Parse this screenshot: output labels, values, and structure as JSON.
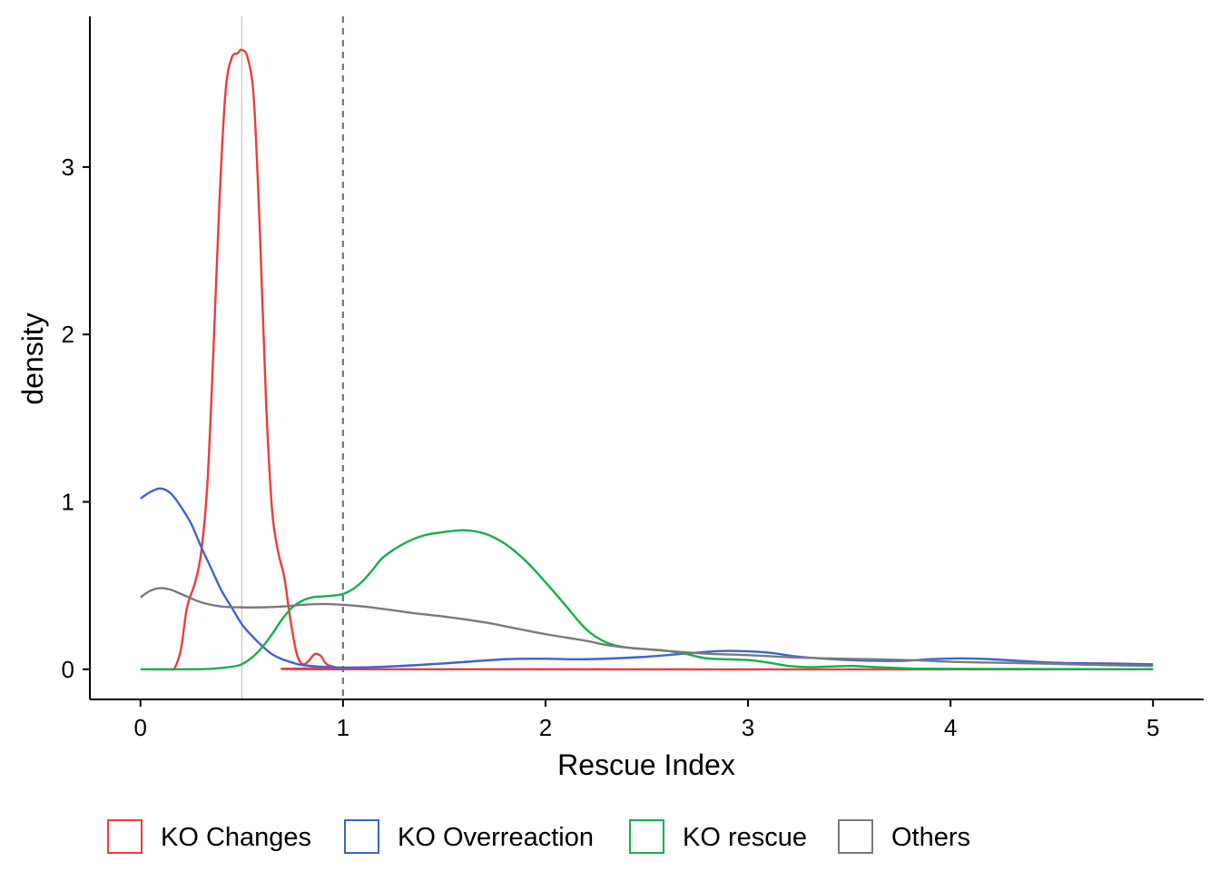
{
  "chart_data": {
    "type": "line",
    "title": "",
    "xlabel": "Rescue Index",
    "ylabel": "density",
    "xlim": [
      -0.25,
      5.25
    ],
    "ylim": [
      -0.18,
      3.9
    ],
    "x_ticks": [
      0,
      1,
      2,
      3,
      4,
      5
    ],
    "x_tick_labels": [
      "0",
      "1",
      "2",
      "3",
      "4",
      "5"
    ],
    "y_ticks": [
      0,
      1,
      2,
      3
    ],
    "y_tick_labels": [
      "0",
      "1",
      "2",
      "3"
    ],
    "grid": false,
    "legend_position": "bottom",
    "reference_lines": [
      {
        "x": 0.5,
        "style": "solid",
        "color": "#bbbbbb"
      },
      {
        "x": 1.0,
        "style": "dashed",
        "color": "#777777"
      }
    ],
    "series": [
      {
        "name": "KO Changes",
        "color": "#f03a3a",
        "points": [
          [
            0.15,
            0
          ],
          [
            0.17,
            0.01
          ],
          [
            0.2,
            0.12
          ],
          [
            0.23,
            0.37
          ],
          [
            0.27,
            0.52
          ],
          [
            0.3,
            0.7
          ],
          [
            0.33,
            1.1
          ],
          [
            0.36,
            1.9
          ],
          [
            0.39,
            2.8
          ],
          [
            0.42,
            3.45
          ],
          [
            0.45,
            3.65
          ],
          [
            0.48,
            3.68
          ],
          [
            0.5,
            3.7
          ],
          [
            0.53,
            3.65
          ],
          [
            0.56,
            3.4
          ],
          [
            0.59,
            2.6
          ],
          [
            0.62,
            1.6
          ],
          [
            0.65,
            0.95
          ],
          [
            0.68,
            0.7
          ],
          [
            0.71,
            0.55
          ],
          [
            0.74,
            0.3
          ],
          [
            0.77,
            0.1
          ],
          [
            0.8,
            0.03
          ],
          [
            0.83,
            0.05
          ],
          [
            0.86,
            0.09
          ],
          [
            0.89,
            0.08
          ],
          [
            0.92,
            0.03
          ],
          [
            0.97,
            0.01
          ],
          [
            1.0,
            0
          ],
          [
            5.0,
            0
          ]
        ]
      },
      {
        "name": "KO Overreaction",
        "color": "#3b63d8",
        "points": [
          [
            0,
            1.02
          ],
          [
            0.05,
            1.06
          ],
          [
            0.1,
            1.08
          ],
          [
            0.15,
            1.05
          ],
          [
            0.2,
            0.97
          ],
          [
            0.25,
            0.87
          ],
          [
            0.3,
            0.73
          ],
          [
            0.35,
            0.6
          ],
          [
            0.4,
            0.47
          ],
          [
            0.45,
            0.37
          ],
          [
            0.5,
            0.27
          ],
          [
            0.55,
            0.2
          ],
          [
            0.6,
            0.14
          ],
          [
            0.65,
            0.09
          ],
          [
            0.7,
            0.06
          ],
          [
            0.75,
            0.04
          ],
          [
            0.8,
            0.025
          ],
          [
            0.9,
            0.015
          ],
          [
            1.0,
            0.01
          ],
          [
            1.2,
            0.015
          ],
          [
            1.5,
            0.035
          ],
          [
            1.8,
            0.06
          ],
          [
            2.0,
            0.063
          ],
          [
            2.2,
            0.06
          ],
          [
            2.5,
            0.075
          ],
          [
            2.75,
            0.1
          ],
          [
            2.9,
            0.11
          ],
          [
            3.1,
            0.1
          ],
          [
            3.25,
            0.075
          ],
          [
            3.5,
            0.055
          ],
          [
            3.75,
            0.05
          ],
          [
            3.9,
            0.06
          ],
          [
            4.05,
            0.065
          ],
          [
            4.2,
            0.06
          ],
          [
            4.5,
            0.04
          ],
          [
            4.75,
            0.035
          ],
          [
            5.0,
            0.03
          ]
        ]
      },
      {
        "name": "KO rescue",
        "color": "#16b04a",
        "points": [
          [
            0,
            0
          ],
          [
            0.2,
            0
          ],
          [
            0.35,
            0.003
          ],
          [
            0.45,
            0.015
          ],
          [
            0.5,
            0.03
          ],
          [
            0.55,
            0.07
          ],
          [
            0.6,
            0.13
          ],
          [
            0.65,
            0.21
          ],
          [
            0.7,
            0.3
          ],
          [
            0.75,
            0.37
          ],
          [
            0.8,
            0.41
          ],
          [
            0.85,
            0.43
          ],
          [
            0.9,
            0.435
          ],
          [
            0.95,
            0.44
          ],
          [
            1.0,
            0.45
          ],
          [
            1.05,
            0.48
          ],
          [
            1.1,
            0.53
          ],
          [
            1.15,
            0.6
          ],
          [
            1.2,
            0.67
          ],
          [
            1.3,
            0.75
          ],
          [
            1.4,
            0.8
          ],
          [
            1.5,
            0.82
          ],
          [
            1.6,
            0.83
          ],
          [
            1.7,
            0.81
          ],
          [
            1.8,
            0.75
          ],
          [
            1.9,
            0.65
          ],
          [
            2.0,
            0.52
          ],
          [
            2.1,
            0.38
          ],
          [
            2.2,
            0.24
          ],
          [
            2.3,
            0.16
          ],
          [
            2.4,
            0.13
          ],
          [
            2.5,
            0.12
          ],
          [
            2.6,
            0.11
          ],
          [
            2.7,
            0.09
          ],
          [
            2.8,
            0.065
          ],
          [
            3.0,
            0.055
          ],
          [
            3.1,
            0.04
          ],
          [
            3.2,
            0.02
          ],
          [
            3.3,
            0.013
          ],
          [
            3.5,
            0.02
          ],
          [
            3.6,
            0.015
          ],
          [
            3.8,
            0.005
          ],
          [
            4.0,
            0.003
          ],
          [
            5.0,
            0
          ]
        ]
      },
      {
        "name": "Others",
        "color": "#7a7a7a",
        "points": [
          [
            0,
            0.43
          ],
          [
            0.05,
            0.47
          ],
          [
            0.1,
            0.485
          ],
          [
            0.15,
            0.475
          ],
          [
            0.2,
            0.45
          ],
          [
            0.3,
            0.4
          ],
          [
            0.4,
            0.375
          ],
          [
            0.5,
            0.37
          ],
          [
            0.6,
            0.37
          ],
          [
            0.7,
            0.375
          ],
          [
            0.8,
            0.385
          ],
          [
            0.9,
            0.39
          ],
          [
            1.0,
            0.385
          ],
          [
            1.1,
            0.375
          ],
          [
            1.2,
            0.36
          ],
          [
            1.35,
            0.335
          ],
          [
            1.5,
            0.315
          ],
          [
            1.7,
            0.28
          ],
          [
            1.85,
            0.245
          ],
          [
            2.0,
            0.21
          ],
          [
            2.2,
            0.17
          ],
          [
            2.3,
            0.145
          ],
          [
            2.4,
            0.13
          ],
          [
            2.6,
            0.11
          ],
          [
            2.8,
            0.093
          ],
          [
            3.0,
            0.085
          ],
          [
            3.2,
            0.072
          ],
          [
            3.4,
            0.065
          ],
          [
            3.6,
            0.06
          ],
          [
            3.8,
            0.055
          ],
          [
            4.0,
            0.045
          ],
          [
            4.2,
            0.04
          ],
          [
            4.5,
            0.033
          ],
          [
            4.75,
            0.025
          ],
          [
            5.0,
            0.02
          ]
        ]
      }
    ]
  }
}
